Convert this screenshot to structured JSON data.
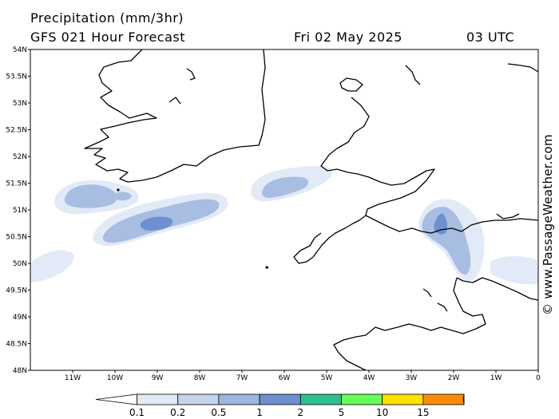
{
  "header": {
    "title": "Precipitation (mm/3hr)",
    "subtitle": "GFS 021 Hour Forecast",
    "date": "Fri 02 May 2025",
    "time": "03 UTC"
  },
  "credit": "© www.PassageWeather.com",
  "map": {
    "lat_labels": [
      "54N",
      "53.5N",
      "53N",
      "52.5N",
      "52N",
      "51.5N",
      "51N",
      "50.5N",
      "50N",
      "49.5N",
      "49N",
      "48.5N",
      "48N"
    ],
    "lon_labels": [
      "11W",
      "10W",
      "9W",
      "8W",
      "7W",
      "6W",
      "5W",
      "4W",
      "3W",
      "2W",
      "1W",
      "0"
    ],
    "lat_range": [
      48,
      54
    ],
    "lon_range": [
      -12,
      0
    ],
    "coast_color": "#000000"
  },
  "colorbar": {
    "labels": [
      "0.1",
      "0.2",
      "0.5",
      "1",
      "2",
      "5",
      "10",
      "15"
    ],
    "colors": [
      "#ffffff",
      "#e3eaf7",
      "#c5d4ec",
      "#9db6de",
      "#6d8fcf",
      "#2fbf8f",
      "#66ff55",
      "#ffe100",
      "#ff8c00",
      "#e83333"
    ]
  }
}
